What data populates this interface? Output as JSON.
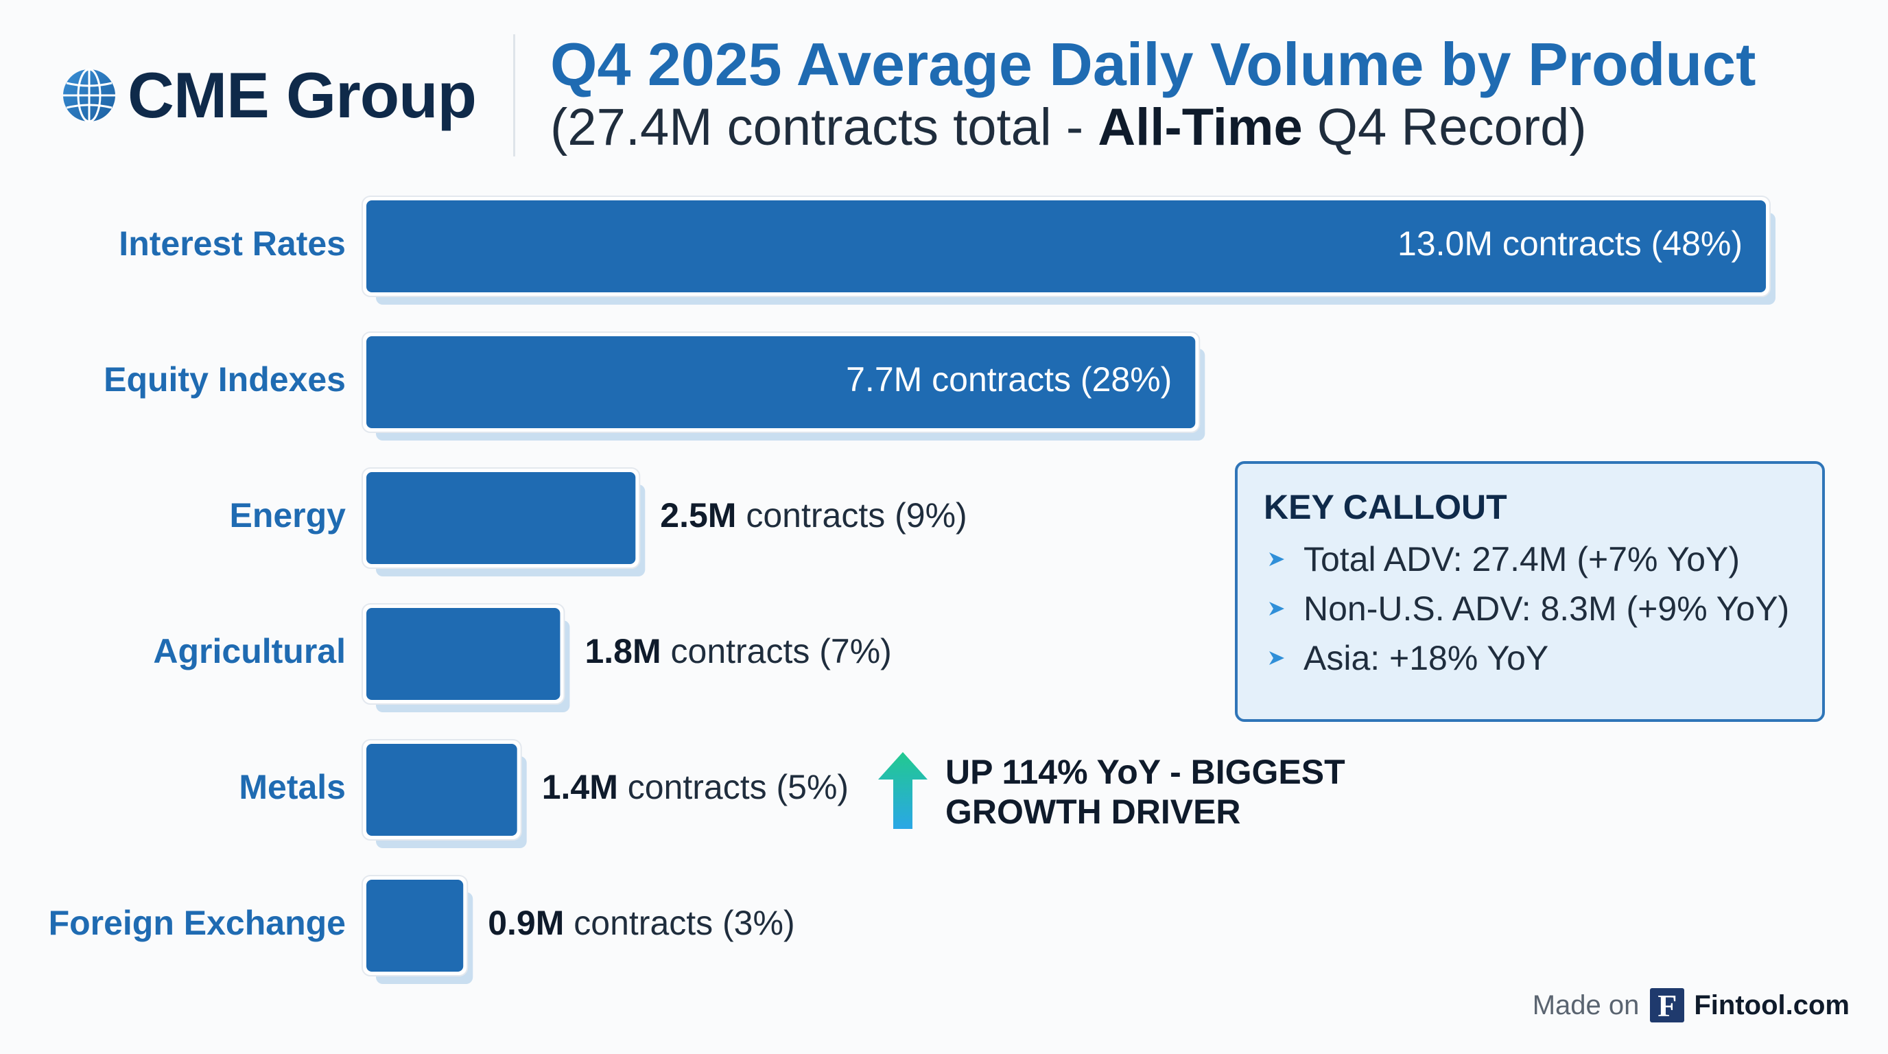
{
  "header": {
    "logo_text": "CME Group",
    "title": "Q4 2025 Average Daily Volume by Product",
    "subtitle_pre": "(27.4M contracts total - ",
    "subtitle_bold": "All-Time",
    "subtitle_post": " Q4 Record)"
  },
  "chart_data": {
    "type": "bar",
    "orientation": "horizontal",
    "title": "Q4 2025 Average Daily Volume by Product",
    "subtitle": "(27.4M contracts total - All-Time Q4 Record)",
    "unit": "M contracts",
    "categories": [
      "Interest Rates",
      "Equity Indexes",
      "Energy",
      "Agricultural",
      "Metals",
      "Foreign Exchange"
    ],
    "values": [
      13.0,
      7.7,
      2.5,
      1.8,
      1.4,
      0.9
    ],
    "value_labels": [
      "13.0M",
      "7.7M",
      "2.5M",
      "1.8M",
      "1.4M",
      "0.9M"
    ],
    "label_suffixes": [
      " contracts (48%)",
      " contracts (28%)",
      " contracts (9%)",
      " contracts (7%)",
      " contracts (5%)",
      " contracts (3%)"
    ],
    "label_inside": [
      true,
      true,
      false,
      false,
      false,
      false
    ],
    "percent_share": [
      48,
      28,
      9,
      7,
      5,
      3
    ],
    "xlim": [
      0,
      13.0
    ],
    "color": "#1f6bb2"
  },
  "callout": {
    "title": "KEY CALLOUT",
    "items": [
      "Total ADV: 27.4M (+7% YoY)",
      "Non-U.S. ADV: 8.3M (+9% YoY)",
      "Asia: +18% YoY"
    ]
  },
  "growth_note": {
    "line1": "UP 114% YoY - BIGGEST",
    "line2": "GROWTH DRIVER"
  },
  "footer": {
    "made_on": "Made on",
    "logo_letter": "F",
    "brand": "Fintool.com"
  }
}
